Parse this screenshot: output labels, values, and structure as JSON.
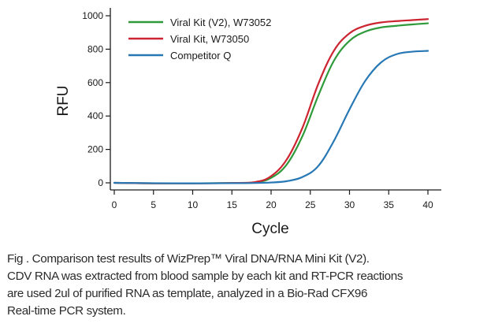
{
  "chart_data": {
    "type": "line",
    "xlabel": "Cycle",
    "ylabel": "RFU",
    "xlim": [
      0,
      40
    ],
    "ylim": [
      0,
      1000
    ],
    "xticks": [
      "0",
      "5",
      "10",
      "15",
      "20",
      "25",
      "30",
      "35",
      "40"
    ],
    "yticks": [
      "0",
      "200",
      "400",
      "600",
      "800",
      "1000"
    ],
    "grid": false,
    "legend_position": "top-left",
    "x": [
      0,
      5,
      10,
      15,
      18,
      20,
      22,
      24,
      26,
      28,
      30,
      32,
      34,
      36,
      38,
      40
    ],
    "series": [
      {
        "name": "Viral Kit (V2), W73052",
        "color": "#2e9a3a",
        "values": [
          0,
          -3,
          -3,
          -1,
          3,
          30,
          110,
          280,
          520,
          730,
          850,
          905,
          930,
          940,
          948,
          955
        ]
      },
      {
        "name": "Viral Kit, W73050",
        "color": "#cc2430",
        "values": [
          0,
          -3,
          -3,
          -1,
          5,
          40,
          140,
          330,
          590,
          790,
          895,
          940,
          960,
          968,
          974,
          980
        ]
      },
      {
        "name": "Competitor Q",
        "color": "#2778b4",
        "values": [
          0,
          -2,
          -3,
          -2,
          -1,
          2,
          10,
          35,
          100,
          250,
          440,
          610,
          720,
          770,
          785,
          790
        ]
      }
    ]
  },
  "caption": {
    "line1": "Fig   . Comparison test results of WizPrep™ Viral DNA/RNA Mini Kit (V2).",
    "line2": "CDV RNA was extracted from blood sample by each kit and RT-PCR reactions",
    "line3": "are used 2ul of purified RNA as template, analyzed in a Bio-Rad CFX96",
    "line4": "Real-time PCR system."
  }
}
